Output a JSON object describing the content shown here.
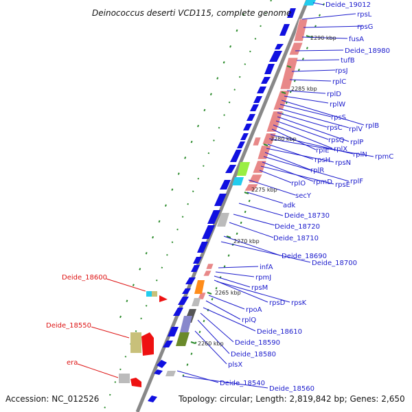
{
  "title": "Deinococcus deserti VCD115, complete genome",
  "footer": {
    "accession": "Accession: NC_012526",
    "summary": "Topology: circular; Length: 2,819,842 bp; Genes: 2,650"
  },
  "kbp_ticks": [
    "2290 kbp",
    "2285 kbp",
    "2280 kbp",
    "2275 kbp",
    "2270 kbp",
    "2265 kbp",
    "2260 kbp"
  ],
  "genes_right": [
    "Deide_19012",
    "rpsL",
    "rpsG",
    "fusA",
    "Deide_18980",
    "tufB",
    "rpsJ",
    "rplC",
    "rplD",
    "rplW",
    "rplB",
    "rpsS",
    "rplV",
    "rpsC",
    "rplP",
    "rpsQ",
    "rplX",
    "rplE",
    "rplN",
    "rpmC",
    "rpsH",
    "rpsN",
    "rplR",
    "rplF",
    "rpmD",
    "rpsE",
    "rplO",
    "secY",
    "adk",
    "Deide_18730",
    "Deide_18720",
    "Deide_18710",
    "Deide_18690",
    "Deide_18700",
    "infA",
    "rpmJ",
    "rpsM",
    "rpsD",
    "rpsK",
    "rpoA",
    "rplQ",
    "Deide_18610",
    "Deide_18590",
    "Deide_18580",
    "plsX",
    "Deide_18540",
    "Deide_18560"
  ],
  "genes_left": [
    "Deide_18600",
    "Deide_18550",
    "era"
  ],
  "colors": {
    "forward_cds": "#1010e0",
    "rrna_like": "#e88888",
    "left_red": "#ee1111",
    "tan": "#c8c07a",
    "cyan": "#22ccee",
    "lime": "#99ee44",
    "orange": "#ff8c1a",
    "gray": "#bbbbbb",
    "backbone": "#888888"
  }
}
